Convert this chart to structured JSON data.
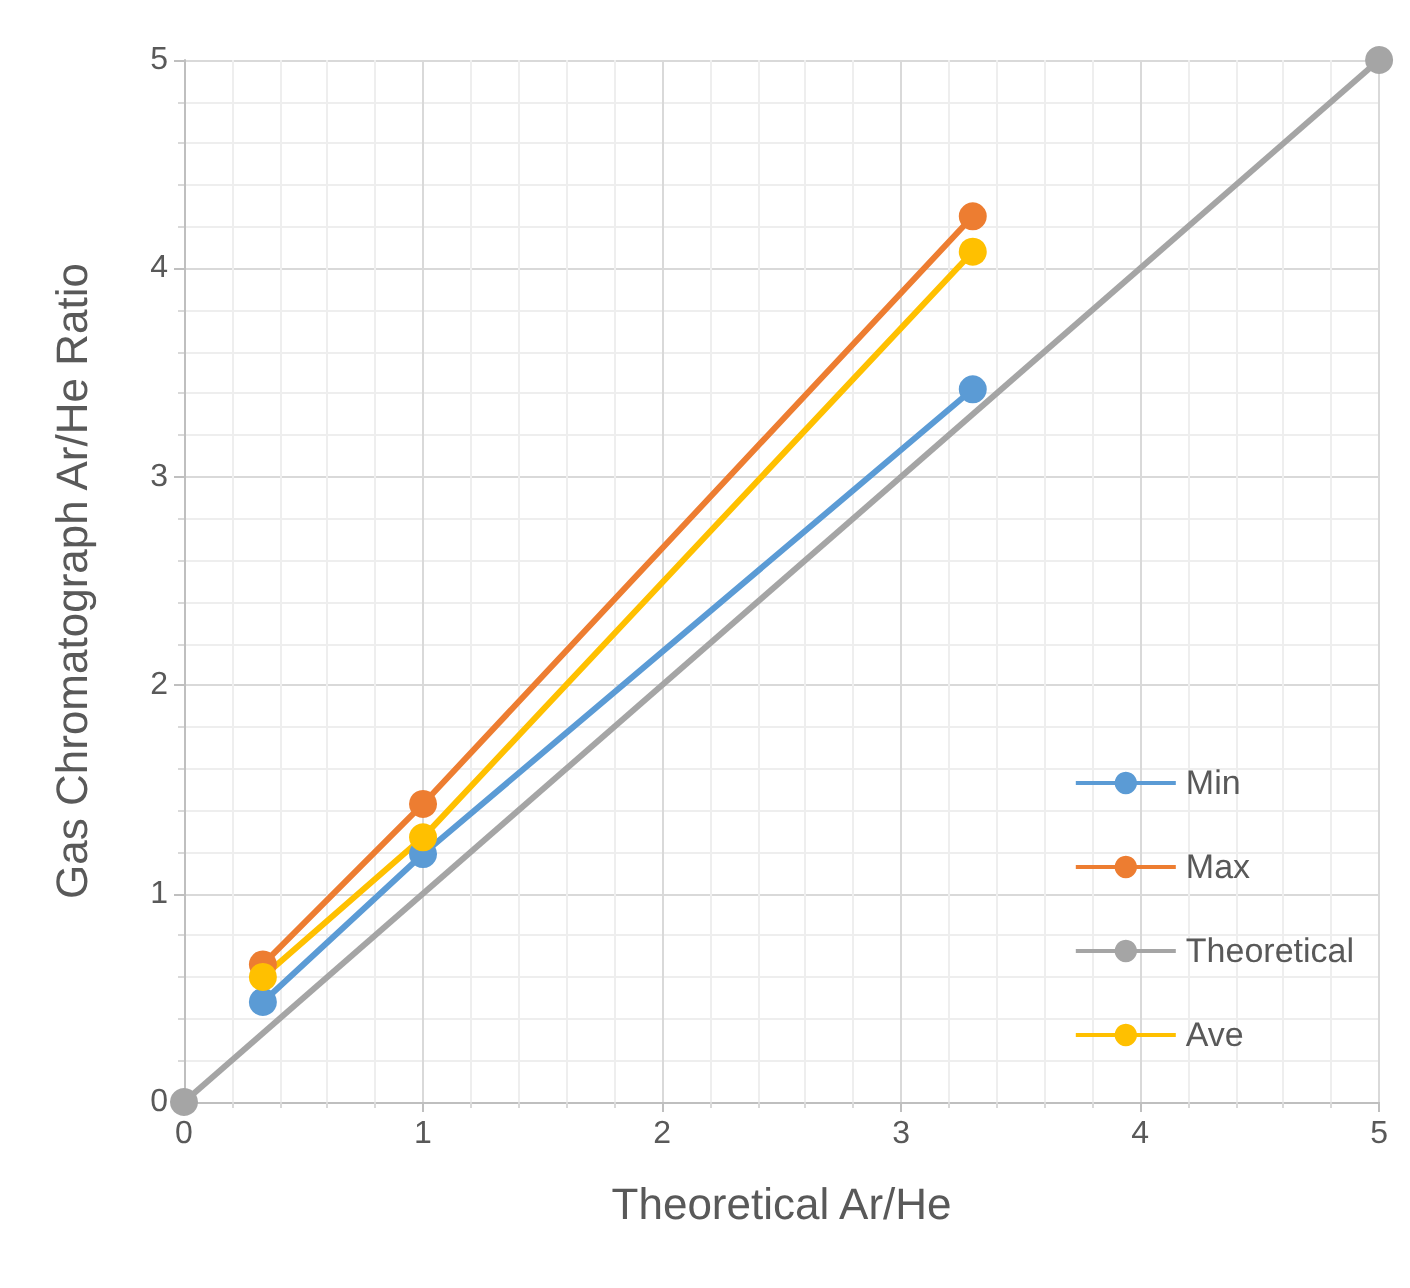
{
  "chart_data": {
    "type": "line",
    "xlabel": "Theoretical Ar/He",
    "ylabel": "Gas Chromatograph Ar/He Ratio",
    "xlim": [
      0,
      5
    ],
    "xticks": [
      0,
      1,
      2,
      3,
      4,
      5
    ],
    "ylim": [
      0,
      5
    ],
    "yticks": [
      0,
      1,
      2,
      3,
      4,
      5
    ],
    "grid": true,
    "legend": "right",
    "marker": "circle",
    "series": [
      {
        "name": "Min",
        "color": "#5b9bd5",
        "x": [
          0.33,
          1,
          3.3
        ],
        "values": [
          0.48,
          1.19,
          3.42
        ]
      },
      {
        "name": "Max",
        "color": "#ed7d31",
        "x": [
          0.33,
          1,
          3.3
        ],
        "values": [
          0.66,
          1.43,
          4.25
        ]
      },
      {
        "name": "Theoretical",
        "color": "#a5a5a5",
        "x": [
          0,
          5
        ],
        "values": [
          0,
          5
        ]
      },
      {
        "name": "Ave",
        "color": "#ffc000",
        "x": [
          0.33,
          1,
          3.3
        ],
        "values": [
          0.6,
          1.27,
          4.08
        ]
      }
    ]
  }
}
